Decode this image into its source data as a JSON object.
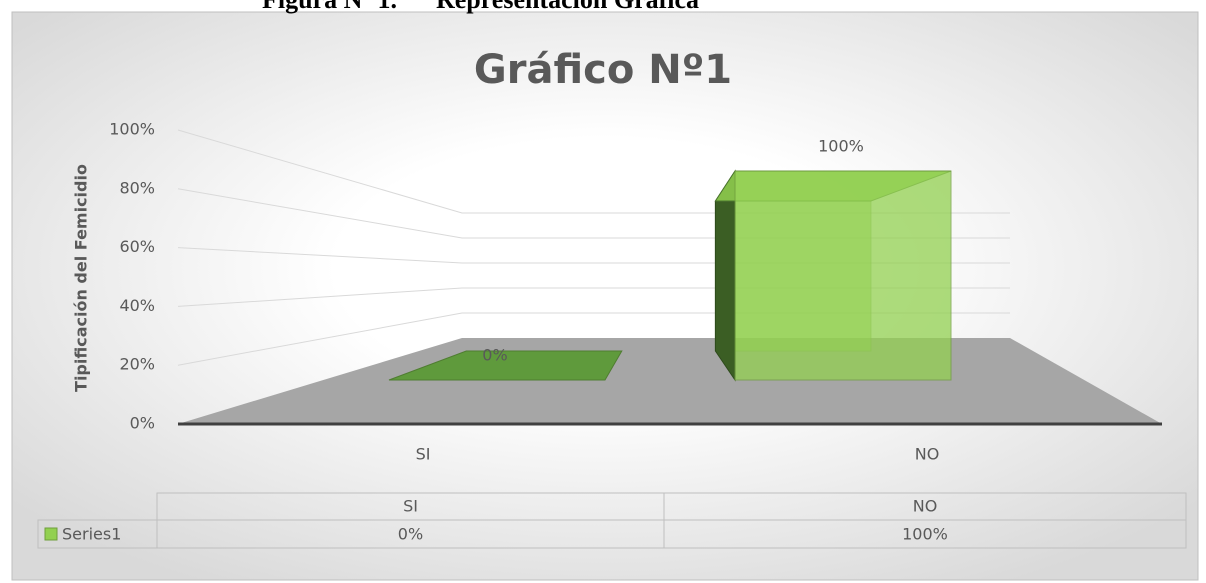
{
  "caption": "Figura Nº 1.      Representación Gráfica",
  "chart_data": {
    "type": "bar3d",
    "title": "Gráfico Nº1",
    "y_label": "Tipificación del Femicidio",
    "categories": [
      "SI",
      "NO"
    ],
    "series": [
      {
        "name": "Series1",
        "color": "#92d050",
        "values": [
          0,
          100
        ],
        "value_labels": [
          "0%",
          "100%"
        ]
      }
    ],
    "ylim": [
      0,
      100
    ],
    "yticks": [
      {
        "value": 0,
        "label": "0%"
      },
      {
        "value": 20,
        "label": "20%"
      },
      {
        "value": 40,
        "label": "40%"
      },
      {
        "value": 60,
        "label": "60%"
      },
      {
        "value": 80,
        "label": "80%"
      },
      {
        "value": 100,
        "label": "100%"
      }
    ],
    "grid": true,
    "data_table": true
  }
}
